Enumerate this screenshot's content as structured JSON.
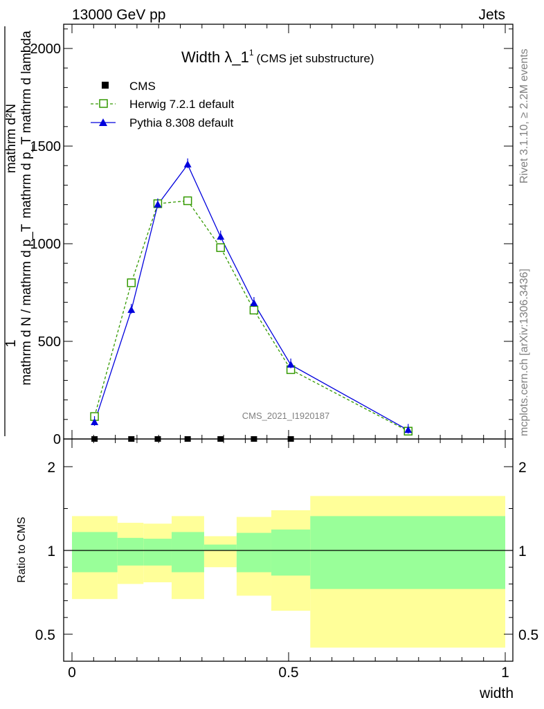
{
  "header": {
    "energy_label": "13000 GeV pp",
    "process_label": "Jets"
  },
  "side": {
    "rivet_label": "Rivet 3.1.10, ≥ 2.2M events",
    "mcplots_label": "mcplots.cern.ch [arXiv:1306.3436]"
  },
  "watermark": "CMS_2021_I1920187",
  "colors": {
    "herwig": "#339900",
    "pythia": "#0000dd",
    "cms": "#000000",
    "band_yellow": "#ffff99",
    "band_green": "#99ff99"
  },
  "chart_data": [
    {
      "type": "line",
      "title": "Width λ_1",
      "title_sup": "1",
      "title_suffix": "(CMS jet substructure)",
      "ylabel_numer": "1",
      "ylabel_denom": "mathrm d N / mathrm d p_T",
      "ylabel_numer2": "mathrm d²N",
      "ylabel_denom2": "mathrm d p_T mathrm d lambda",
      "ylim": [
        0,
        2200
      ],
      "xlim": [
        0,
        1
      ],
      "yticks": [
        0,
        500,
        1000,
        1500,
        2000
      ],
      "ytick_labels": [
        "0",
        "500",
        "1000",
        "1500",
        "2000"
      ],
      "legend_position": "top-left",
      "series": [
        {
          "name": "CMS",
          "marker": "square-filled",
          "x": [
            0.052,
            0.137,
            0.198,
            0.267,
            0.343,
            0.42,
            0.505
          ],
          "y": [
            0,
            0,
            0,
            0,
            0,
            0,
            0
          ]
        },
        {
          "name": "Herwig 7.2.1 default",
          "marker": "square-open",
          "style": "dashed",
          "x": [
            0.052,
            0.137,
            0.198,
            0.267,
            0.343,
            0.42,
            0.505,
            0.776
          ],
          "y": [
            115,
            800,
            1205,
            1220,
            980,
            660,
            355,
            40
          ]
        },
        {
          "name": "Pythia 8.308 default",
          "marker": "triangle-filled",
          "style": "solid",
          "x": [
            0.052,
            0.137,
            0.198,
            0.267,
            0.343,
            0.42,
            0.505,
            0.776
          ],
          "y": [
            85,
            660,
            1200,
            1405,
            1035,
            695,
            380,
            45
          ]
        }
      ]
    },
    {
      "type": "area",
      "ylabel": "Ratio to CMS",
      "xlabel": "width",
      "xlim": [
        0,
        1
      ],
      "ylim": [
        0.35,
        2.25
      ],
      "yticks": [
        0.5,
        1,
        2
      ],
      "ytick_labels": [
        "0.5",
        "1",
        "2"
      ],
      "xticks": [
        0,
        0.5,
        1
      ],
      "xtick_labels": [
        "0",
        "0.5",
        "1"
      ],
      "bins": [
        {
          "x0": 0.0,
          "x1": 0.105,
          "green": [
            0.87,
            1.22
          ],
          "yellow": [
            0.71,
            1.41
          ]
        },
        {
          "x0": 0.105,
          "x1": 0.165,
          "green": [
            0.91,
            1.15
          ],
          "yellow": [
            0.8,
            1.33
          ]
        },
        {
          "x0": 0.165,
          "x1": 0.23,
          "green": [
            0.91,
            1.14
          ],
          "yellow": [
            0.81,
            1.32
          ]
        },
        {
          "x0": 0.23,
          "x1": 0.305,
          "green": [
            0.87,
            1.22
          ],
          "yellow": [
            0.71,
            1.41
          ]
        },
        {
          "x0": 0.305,
          "x1": 0.38,
          "green": [
            1.0,
            1.07
          ],
          "yellow": [
            0.9,
            1.17
          ]
        },
        {
          "x0": 0.38,
          "x1": 0.46,
          "green": [
            0.87,
            1.21
          ],
          "yellow": [
            0.73,
            1.4
          ]
        },
        {
          "x0": 0.46,
          "x1": 0.55,
          "green": [
            0.85,
            1.25
          ],
          "yellow": [
            0.64,
            1.48
          ]
        },
        {
          "x0": 0.55,
          "x1": 1.0,
          "green": [
            0.77,
            1.41
          ],
          "yellow": [
            0.42,
            1.65
          ]
        }
      ]
    }
  ]
}
